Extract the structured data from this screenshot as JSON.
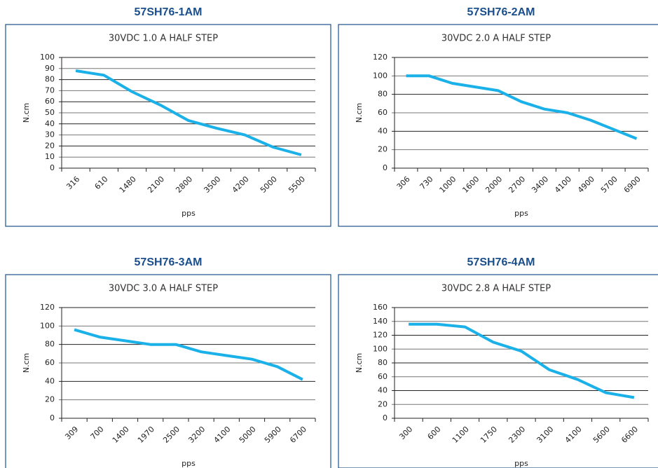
{
  "chart_data": [
    {
      "type": "line",
      "heading": "57SH76-1AM",
      "title": "30VDC 1.0 A HALF STEP",
      "y_label": "N.cm",
      "x_label": "pps",
      "categories": [
        "316",
        "610",
        "1480",
        "2100",
        "2800",
        "3500",
        "4200",
        "5000",
        "5500"
      ],
      "series": [
        {
          "color": "#1ab0e8",
          "values": [
            88,
            84,
            69,
            57,
            43,
            36,
            30,
            19,
            12
          ]
        }
      ],
      "ylim": [
        0,
        100
      ],
      "yticks": [
        0,
        10,
        20,
        30,
        40,
        50,
        60,
        70,
        80,
        90,
        100
      ],
      "grid": true
    },
    {
      "type": "line",
      "heading": "57SH76-2AM",
      "title": "30VDC 2.0 A HALF STEP",
      "y_label": "N.cm",
      "x_label": "pps",
      "categories": [
        "306",
        "730",
        "1000",
        "1600",
        "2000",
        "2700",
        "3400",
        "4100",
        "4900",
        "5700",
        "6900"
      ],
      "series": [
        {
          "color": "#1ab0e8",
          "values": [
            100,
            100,
            92,
            88,
            84,
            72,
            64,
            60,
            52,
            42,
            32
          ]
        }
      ],
      "ylim": [
        0,
        120
      ],
      "yticks": [
        0,
        20,
        40,
        60,
        80,
        100,
        120
      ],
      "grid": true
    },
    {
      "type": "line",
      "heading": "57SH76-3AM",
      "title": "30VDC 3.0 A HALF STEP",
      "y_label": "N.cm",
      "x_label": "pps",
      "categories": [
        "309",
        "700",
        "1400",
        "1970",
        "2500",
        "3200",
        "4100",
        "5000",
        "5900",
        "6700"
      ],
      "series": [
        {
          "color": "#1ab0e8",
          "values": [
            96,
            88,
            84,
            80,
            80,
            72,
            68,
            64,
            56,
            42
          ]
        }
      ],
      "ylim": [
        0,
        120
      ],
      "yticks": [
        0,
        20,
        40,
        60,
        80,
        100,
        120
      ],
      "grid": true
    },
    {
      "type": "line",
      "heading": "57SH76-4AM",
      "title": "30VDC 2.8 A HALF STEP",
      "y_label": "N.cm",
      "x_label": "pps",
      "categories": [
        "300",
        "600",
        "1100",
        "1750",
        "2300",
        "3100",
        "4100",
        "5600",
        "6600"
      ],
      "series": [
        {
          "color": "#1ab0e8",
          "values": [
            136,
            136,
            132,
            110,
            97,
            70,
            56,
            37,
            30
          ]
        }
      ],
      "ylim": [
        0,
        160
      ],
      "yticks": [
        0,
        20,
        40,
        60,
        80,
        100,
        120,
        140,
        160
      ],
      "grid": true
    }
  ]
}
